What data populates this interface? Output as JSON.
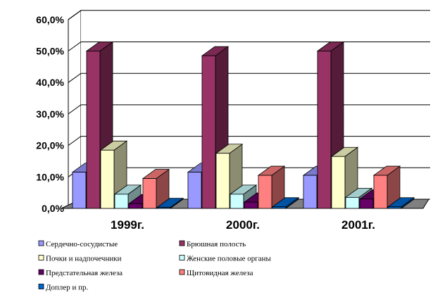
{
  "chart_data": {
    "type": "bar",
    "three_d": true,
    "categories": [
      "1999г.",
      "2000г.",
      "2001г."
    ],
    "y_ticks": [
      "0,0%",
      "10,0%",
      "20,0%",
      "30,0%",
      "40,0%",
      "50,0%",
      "60,0%"
    ],
    "ylim": [
      0,
      60
    ],
    "grid": true,
    "legend_position": "bottom",
    "series": [
      {
        "name": "Сердечно-сосудистые",
        "values": [
          11.5,
          11.5,
          10.5
        ],
        "color": "#9999ff"
      },
      {
        "name": "Брюшная полость",
        "values": [
          50.0,
          48.5,
          50.0
        ],
        "color": "#993366"
      },
      {
        "name": "Почки и надпочечники",
        "values": [
          18.5,
          17.5,
          16.5
        ],
        "color": "#ffffcc"
      },
      {
        "name": "Женские половые органы",
        "values": [
          4.5,
          4.5,
          3.5
        ],
        "color": "#ccffff"
      },
      {
        "name": "Предстательная железа",
        "values": [
          1.5,
          2.0,
          3.0
        ],
        "color": "#660066"
      },
      {
        "name": "Щитовидная железа",
        "values": [
          9.5,
          10.5,
          10.5
        ],
        "color": "#ff8080"
      },
      {
        "name": "Доплер и пр.",
        "values": [
          0.3,
          0.5,
          0.5
        ],
        "color": "#0066cc"
      }
    ]
  }
}
